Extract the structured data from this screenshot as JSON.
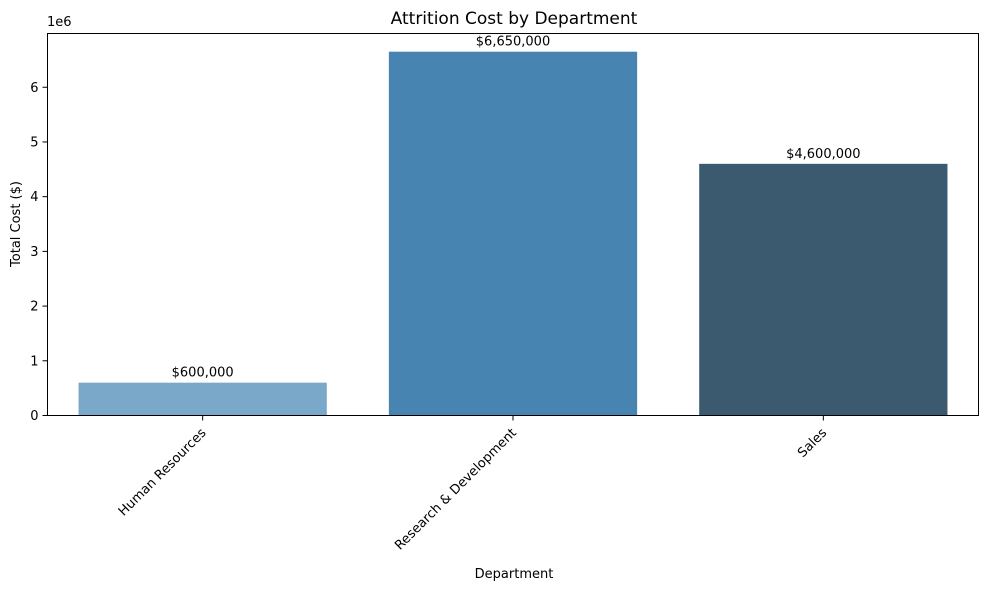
{
  "chart_data": {
    "type": "bar",
    "title": "Attrition Cost by Department",
    "xlabel": "Department",
    "ylabel": "Total Cost ($)",
    "y_offset_label": "1e6",
    "categories": [
      "Human Resources",
      "Research & Development",
      "Sales"
    ],
    "values": [
      600000,
      6650000,
      4600000
    ],
    "value_labels": [
      "$600,000",
      "$6,650,000",
      "$4,600,000"
    ],
    "bar_colors": [
      "#7aa8c9",
      "#4884b1",
      "#3c5a6f"
    ],
    "ylim": [
      0,
      6982500
    ],
    "y_ticks": [
      0,
      1000000,
      2000000,
      3000000,
      4000000,
      5000000,
      6000000
    ],
    "y_tick_labels": [
      "0",
      "1",
      "2",
      "3",
      "4",
      "5",
      "6"
    ],
    "x_tick_rotation_deg": 45,
    "grid": false,
    "legend": "none"
  }
}
